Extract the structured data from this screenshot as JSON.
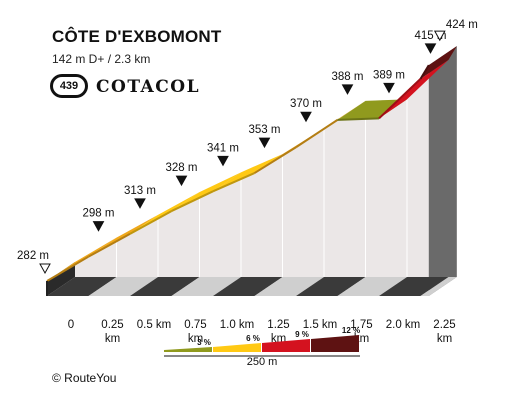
{
  "header": {
    "title": "CÔTE D'EXBOMONT",
    "subtitle": "142 m D+ / 2.3 km",
    "badge_number": "439",
    "brand": "COTACOL"
  },
  "footer": {
    "credit": "© RouteYou"
  },
  "chart_data": {
    "type": "area",
    "title": "CÔTE D'EXBOMONT",
    "subtitle": "142 m D+ / 2.3 km",
    "xlabel": "",
    "ylabel": "",
    "points": [
      {
        "x_km": 0,
        "elevation_m": 282,
        "label": "282 m",
        "marker": "open"
      },
      {
        "x_km": 0.25,
        "elevation_m": 298,
        "label": "298 m",
        "marker": "filled"
      },
      {
        "x_km": 0.5,
        "elevation_m": 313,
        "label": "313 m",
        "marker": "filled"
      },
      {
        "x_km": 0.75,
        "elevation_m": 328,
        "label": "328 m",
        "marker": "filled"
      },
      {
        "x_km": 1.0,
        "elevation_m": 341,
        "label": "341 m",
        "marker": "filled"
      },
      {
        "x_km": 1.25,
        "elevation_m": 353,
        "label": "353 m",
        "marker": "filled"
      },
      {
        "x_km": 1.5,
        "elevation_m": 370,
        "label": "370 m",
        "marker": "filled"
      },
      {
        "x_km": 1.75,
        "elevation_m": 388,
        "label": "388 m",
        "marker": "filled"
      },
      {
        "x_km": 2.0,
        "elevation_m": 389,
        "label": "389 m",
        "marker": "filled"
      },
      {
        "x_km": 2.25,
        "elevation_m": 415,
        "label": "415 m",
        "marker": "filled"
      },
      {
        "x_km": 2.3,
        "elevation_m": 424,
        "label": "424 m",
        "marker": "open"
      }
    ],
    "segments": [
      {
        "from_km": 0,
        "to_km": 0.25,
        "color": "#f0a81a"
      },
      {
        "from_km": 0.25,
        "to_km": 0.5,
        "color": "#f0a81a"
      },
      {
        "from_km": 0.5,
        "to_km": 0.75,
        "color": "#ffc914"
      },
      {
        "from_km": 0.75,
        "to_km": 1.0,
        "color": "#ffc914"
      },
      {
        "from_km": 1.0,
        "to_km": 1.25,
        "color": "#ffc914"
      },
      {
        "from_km": 1.25,
        "to_km": 1.5,
        "color": "#f0a81a"
      },
      {
        "from_km": 1.5,
        "to_km": 1.75,
        "color": "#f0a81a"
      },
      {
        "from_km": 1.75,
        "to_km": 2.0,
        "color": "#909a1e"
      },
      {
        "from_km": 2.0,
        "to_km": 2.25,
        "color": "#d4121f"
      },
      {
        "from_km": 2.25,
        "to_km": 2.3,
        "color": "#5e1212"
      }
    ],
    "x_ticks": [
      "0",
      "0.25\nkm",
      "0.5 km",
      "0.75\nkm",
      "1.0 km",
      "1.25\nkm",
      "1.5 km",
      "1.75\nkm",
      "2.0 km",
      "2.25\nkm"
    ],
    "legend": {
      "items": [
        {
          "label": "3 %",
          "color": "#909a1e"
        },
        {
          "label": "6 %",
          "color": "#ffc914"
        },
        {
          "label": "9 %",
          "color": "#d4121f"
        },
        {
          "label": "12 %",
          "color": "#5e1212"
        }
      ],
      "scale_label": "250 m",
      "placement": "bottom-right"
    }
  }
}
